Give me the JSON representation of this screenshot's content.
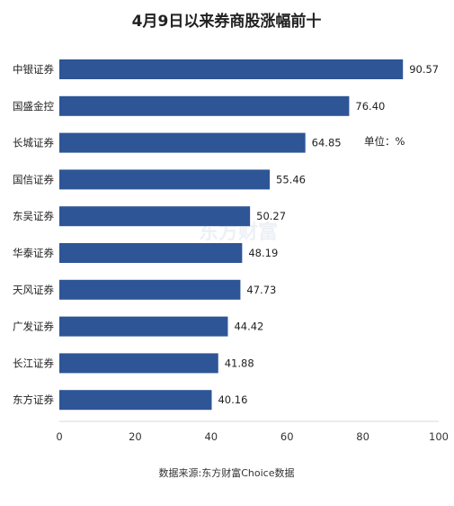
{
  "chart_data": {
    "type": "bar",
    "orientation": "horizontal",
    "title": "4月9日以来券商股涨幅前十",
    "unit_label": "单位：%",
    "source": "数据来源:东方财富Choice数据",
    "watermark": "东方财富",
    "categories": [
      "中银证券",
      "国盛金控",
      "长城证券",
      "国信证券",
      "东吴证券",
      "华泰证券",
      "天风证券",
      "广发证券",
      "长江证券",
      "东方证券"
    ],
    "values": [
      90.57,
      76.4,
      64.85,
      55.46,
      50.27,
      48.19,
      47.73,
      44.42,
      41.88,
      40.16
    ],
    "value_labels": [
      "90.57",
      "76.40",
      "64.85",
      "55.46",
      "50.27",
      "48.19",
      "47.73",
      "44.42",
      "41.88",
      "40.16"
    ],
    "xlim": [
      0,
      100
    ],
    "xticks": [
      0,
      20,
      40,
      60,
      80,
      100
    ],
    "xtick_labels": [
      "0",
      "20",
      "40",
      "60",
      "80",
      "100"
    ],
    "bar_color": "#2e5596",
    "axis_color": "#d9d9d9",
    "grid": false,
    "legend": "none"
  }
}
